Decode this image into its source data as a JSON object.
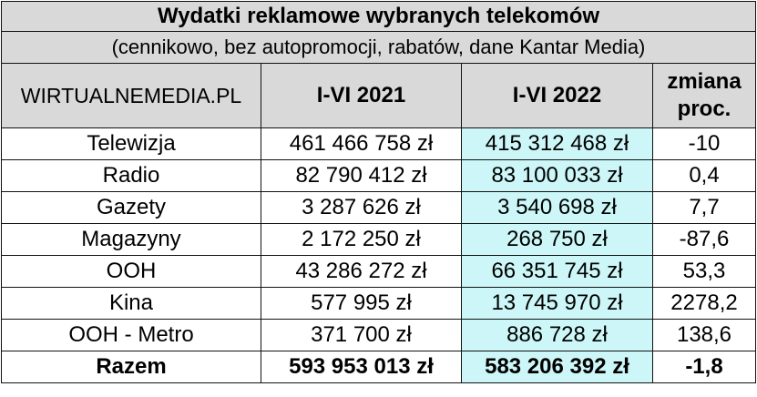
{
  "table": {
    "title": "Wydatki reklamowe wybranych telekomów",
    "subtitle": "(cennikowo, bez autopromocji, rabatów, dane Kantar Media)",
    "headers": {
      "source": "WIRTUALNEMEDIA.PL",
      "period_2021": "I-VI 2021",
      "period_2022": "I-VI 2022",
      "change": "zmiana proc."
    },
    "rows": [
      {
        "category": "Telewizja",
        "v2021": "461 466 758 zł",
        "v2022": "415 312 468 zł",
        "change": "-10"
      },
      {
        "category": "Radio",
        "v2021": "82 790 412 zł",
        "v2022": "83 100 033 zł",
        "change": "0,4"
      },
      {
        "category": "Gazety",
        "v2021": "3 287 626 zł",
        "v2022": "3 540 698 zł",
        "change": "7,7"
      },
      {
        "category": "Magazyny",
        "v2021": "2 172 250 zł",
        "v2022": "268 750 zł",
        "change": "-87,6"
      },
      {
        "category": "OOH",
        "v2021": "43 286 272 zł",
        "v2022": "66 351 745 zł",
        "change": "53,3"
      },
      {
        "category": "Kina",
        "v2021": "577 995 zł",
        "v2022": "13 745 970 zł",
        "change": "2278,2"
      },
      {
        "category": "OOH - Metro",
        "v2021": "371 700 zł",
        "v2022": "886 728 zł",
        "change": "138,6"
      }
    ],
    "total": {
      "category": "Razem",
      "v2021": "593 953 013 zł",
      "v2022": "583 206 392 zł",
      "change": "-1,8"
    }
  },
  "colors": {
    "header_bg": "#d9d9d9",
    "highlight_2022": "#ccf6f7",
    "border": "#111111"
  }
}
